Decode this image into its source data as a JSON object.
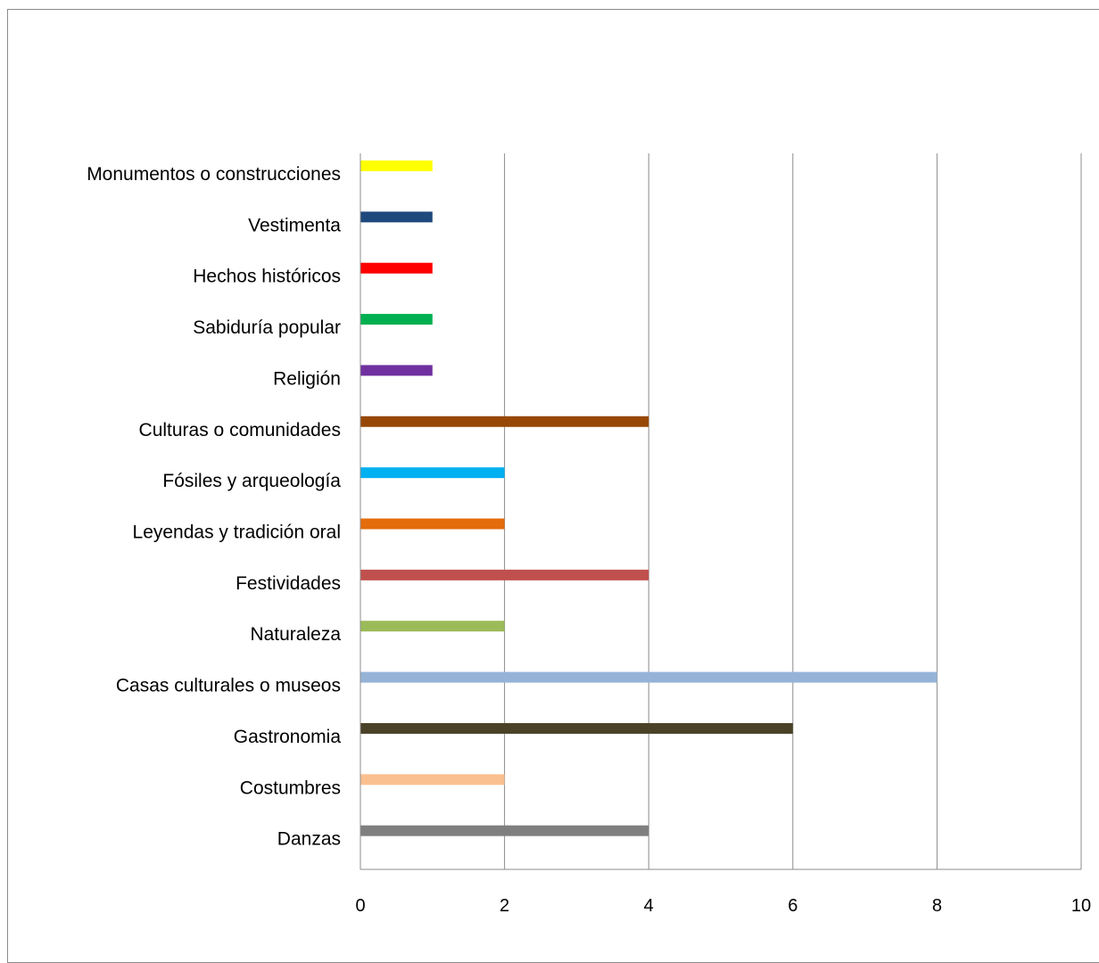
{
  "chart_data": {
    "type": "bar",
    "orientation": "horizontal",
    "categories": [
      "Danzas",
      "Costumbres",
      "Gastronomia",
      "Casas culturales o museos",
      "Naturaleza",
      "Festividades",
      "Leyendas y tradición oral",
      "Fósiles y arqueología",
      "Culturas o comunidades",
      "Religión",
      "Sabiduría popular",
      "Hechos históricos",
      "Vestimenta",
      "Monumentos o construcciones"
    ],
    "values": [
      4,
      2,
      6,
      8,
      2,
      4,
      2,
      2,
      4,
      1,
      1,
      1,
      1,
      1
    ],
    "colors": [
      "#7f7f7f",
      "#fac090",
      "#4a4228",
      "#95b3d7",
      "#9bbb59",
      "#c0504d",
      "#e46c0a",
      "#00b0f0",
      "#974806",
      "#7030a0",
      "#00b050",
      "#ff0000",
      "#1f497d",
      "#ffff00"
    ],
    "x_ticks": [
      "0",
      "2",
      "4",
      "6",
      "8",
      "10"
    ],
    "xlim": [
      0,
      10
    ],
    "grid": "vertical",
    "legend": "none",
    "title": "",
    "xlabel": "",
    "ylabel": ""
  }
}
